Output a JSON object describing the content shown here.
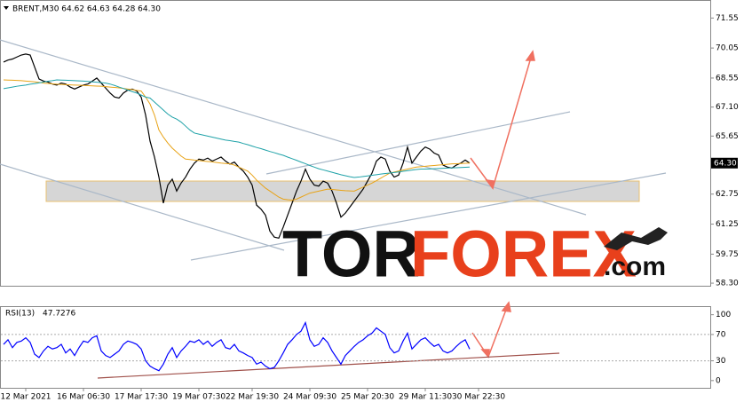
{
  "chart_data": [
    {
      "type": "line",
      "title": "BRENT,M30 64.62 64.63 64.28 64.30",
      "categories": [
        null,
        null,
        null,
        null,
        null,
        "12 Mar 2021",
        null,
        null,
        null,
        null,
        null,
        null,
        null,
        null,
        null,
        null,
        null,
        null,
        "16 Mar 06:30",
        null,
        null,
        null,
        null,
        null,
        null,
        null,
        null,
        null,
        null,
        null,
        null,
        "17 Mar 17:30",
        null,
        null,
        null,
        null,
        null,
        null,
        null,
        null,
        null,
        null,
        null,
        null,
        "19 Mar 07:30",
        null,
        null,
        null,
        null,
        null,
        null,
        null,
        null,
        null,
        null,
        null,
        "22 Mar 19:30",
        null,
        null,
        null,
        null,
        null,
        null,
        null,
        null,
        null,
        null,
        null,
        null,
        "24 Mar 09:30",
        null,
        null,
        null,
        null,
        null,
        null,
        null,
        null,
        null,
        null,
        null,
        null,
        "25 Mar 20:30",
        null,
        null,
        null,
        null,
        null,
        null,
        null,
        null,
        null,
        null,
        null,
        null,
        "29 Mar 11:30",
        null,
        null,
        null,
        null,
        null,
        null,
        null,
        null,
        null,
        null,
        null,
        "30 Mar 22:30"
      ],
      "series": [
        {
          "color": "#000000",
          "values": [
            69.35,
            69.45,
            69.5,
            69.6,
            69.7,
            69.75,
            69.7,
            69.1,
            68.5,
            68.4,
            68.35,
            68.25,
            68.2,
            68.3,
            68.25,
            68.1,
            68.0,
            68.1,
            68.2,
            68.25,
            68.4,
            68.55,
            68.3,
            68.05,
            67.8,
            67.6,
            67.55,
            67.8,
            67.95,
            68.0,
            67.9,
            67.6,
            66.7,
            65.4,
            64.6,
            63.6,
            62.3,
            63.2,
            63.5,
            62.9,
            63.3,
            63.6,
            64.0,
            64.3,
            64.5,
            64.45,
            64.55,
            64.4,
            64.5,
            64.6,
            64.4,
            64.25,
            64.35,
            64.1,
            63.9,
            63.6,
            63.2,
            62.2,
            62.0,
            61.7,
            60.9,
            60.6,
            60.55,
            61.1,
            61.7,
            62.3,
            62.9,
            63.4,
            64.0,
            63.5,
            63.2,
            63.15,
            63.4,
            63.3,
            62.9,
            62.3,
            61.6,
            61.8,
            62.1,
            62.4,
            62.7,
            63.0,
            63.4,
            63.8,
            64.4,
            64.6,
            64.5,
            63.9,
            63.6,
            63.7,
            64.3,
            65.1,
            64.3,
            64.6,
            64.9,
            65.1,
            65.0,
            64.8,
            64.7,
            64.2,
            64.1,
            64.05,
            64.2,
            64.3,
            64.45,
            64.3,
            null,
            null
          ]
        },
        {
          "color": "#e8a317",
          "values": [
            68.46,
            68.45,
            68.44,
            68.43,
            68.42,
            68.4,
            68.38,
            68.36,
            68.33,
            68.3,
            68.28,
            68.26,
            68.24,
            68.23,
            68.22,
            68.21,
            68.2,
            68.19,
            68.18,
            68.17,
            68.16,
            68.15,
            68.14,
            68.12,
            68.1,
            68.08,
            68.06,
            68.03,
            68.0,
            67.97,
            67.93,
            67.9,
            67.6,
            67.25,
            66.7,
            65.95,
            65.6,
            65.3,
            65.05,
            64.85,
            64.65,
            64.5,
            64.48,
            64.45,
            64.43,
            64.4,
            64.38,
            64.36,
            64.33,
            64.3,
            64.28,
            64.26,
            64.2,
            64.1,
            64.0,
            63.9,
            63.7,
            63.45,
            63.25,
            63.05,
            62.9,
            62.75,
            62.6,
            62.5,
            62.47,
            62.45,
            62.5,
            62.6,
            62.7,
            62.8,
            62.85,
            62.9,
            62.95,
            63.0,
            62.98,
            62.96,
            62.94,
            62.92,
            62.91,
            62.9,
            63.0,
            63.1,
            63.2,
            63.3,
            63.42,
            63.55,
            63.68,
            63.8,
            63.85,
            63.9,
            63.95,
            64.0,
            64.05,
            64.1,
            64.12,
            64.14,
            64.16,
            64.18,
            64.2,
            64.22,
            64.24,
            64.26,
            64.27,
            64.28,
            64.29,
            64.3,
            null,
            null
          ]
        },
        {
          "color": "#1fa2a8",
          "values": [
            68.02,
            68.06,
            68.1,
            68.14,
            68.17,
            68.2,
            68.24,
            68.27,
            68.31,
            68.35,
            68.39,
            68.42,
            68.46,
            68.45,
            68.44,
            68.43,
            68.42,
            68.41,
            68.4,
            68.38,
            68.36,
            68.34,
            68.32,
            68.3,
            68.25,
            68.18,
            68.1,
            68.03,
            67.95,
            67.87,
            67.8,
            67.7,
            67.6,
            67.55,
            67.35,
            67.15,
            66.95,
            66.75,
            66.6,
            66.5,
            66.35,
            66.15,
            65.95,
            65.8,
            65.75,
            65.7,
            65.65,
            65.6,
            65.55,
            65.5,
            65.45,
            65.42,
            65.38,
            65.35,
            65.28,
            65.22,
            65.15,
            65.08,
            65.02,
            64.95,
            64.88,
            64.82,
            64.75,
            64.69,
            64.6,
            64.52,
            64.44,
            64.35,
            64.27,
            64.18,
            64.1,
            64.02,
            63.96,
            63.9,
            63.84,
            63.78,
            63.72,
            63.67,
            63.62,
            63.58,
            63.6,
            63.63,
            63.66,
            63.69,
            63.72,
            63.75,
            63.78,
            63.8,
            63.83,
            63.86,
            63.89,
            63.92,
            63.95,
            63.98,
            64.0,
            64.0,
            64.01,
            64.02,
            64.03,
            64.04,
            64.05,
            64.06,
            64.07,
            64.08,
            64.09,
            64.1,
            null,
            null
          ]
        }
      ],
      "ylim": [
        58.17,
        72.45
      ],
      "yticks": [
        71.55,
        70.05,
        68.55,
        {
          "value": 67.1,
          "label": "67.10"
        },
        65.65,
        62.75,
        61.25,
        59.75,
        {
          "value": 58.3,
          "label": "58.30"
        }
      ],
      "last_price": {
        "value": 64.3,
        "label": "64.30"
      }
    },
    {
      "type": "line",
      "title": "RSI(13)",
      "series": [
        {
          "color": "#0000ff",
          "values": [
            55,
            62,
            50,
            58,
            60,
            65,
            58,
            40,
            35,
            45,
            52,
            48,
            50,
            55,
            42,
            48,
            38,
            50,
            60,
            58,
            65,
            68,
            45,
            38,
            35,
            40,
            45,
            55,
            60,
            58,
            55,
            48,
            30,
            22,
            18,
            15,
            25,
            40,
            50,
            35,
            45,
            52,
            60,
            58,
            62,
            55,
            60,
            52,
            58,
            62,
            50,
            48,
            55,
            45,
            42,
            38,
            35,
            25,
            28,
            22,
            18,
            20,
            30,
            42,
            55,
            62,
            70,
            75,
            88,
            62,
            52,
            55,
            65,
            58,
            45,
            35,
            25,
            38,
            45,
            52,
            58,
            62,
            68,
            72,
            80,
            75,
            70,
            50,
            42,
            45,
            60,
            72,
            48,
            55,
            62,
            65,
            58,
            52,
            55,
            45,
            42,
            45,
            52,
            58,
            62,
            47.7276,
            null,
            null
          ]
        }
      ],
      "ylim": [
        -11,
        113
      ],
      "yticks": [
        100,
        70,
        30,
        0
      ],
      "levels": [
        70,
        30
      ]
    }
  ],
  "watermark": {
    "dark": "TOR",
    "red": "FOREX",
    "suffix": ".com"
  }
}
